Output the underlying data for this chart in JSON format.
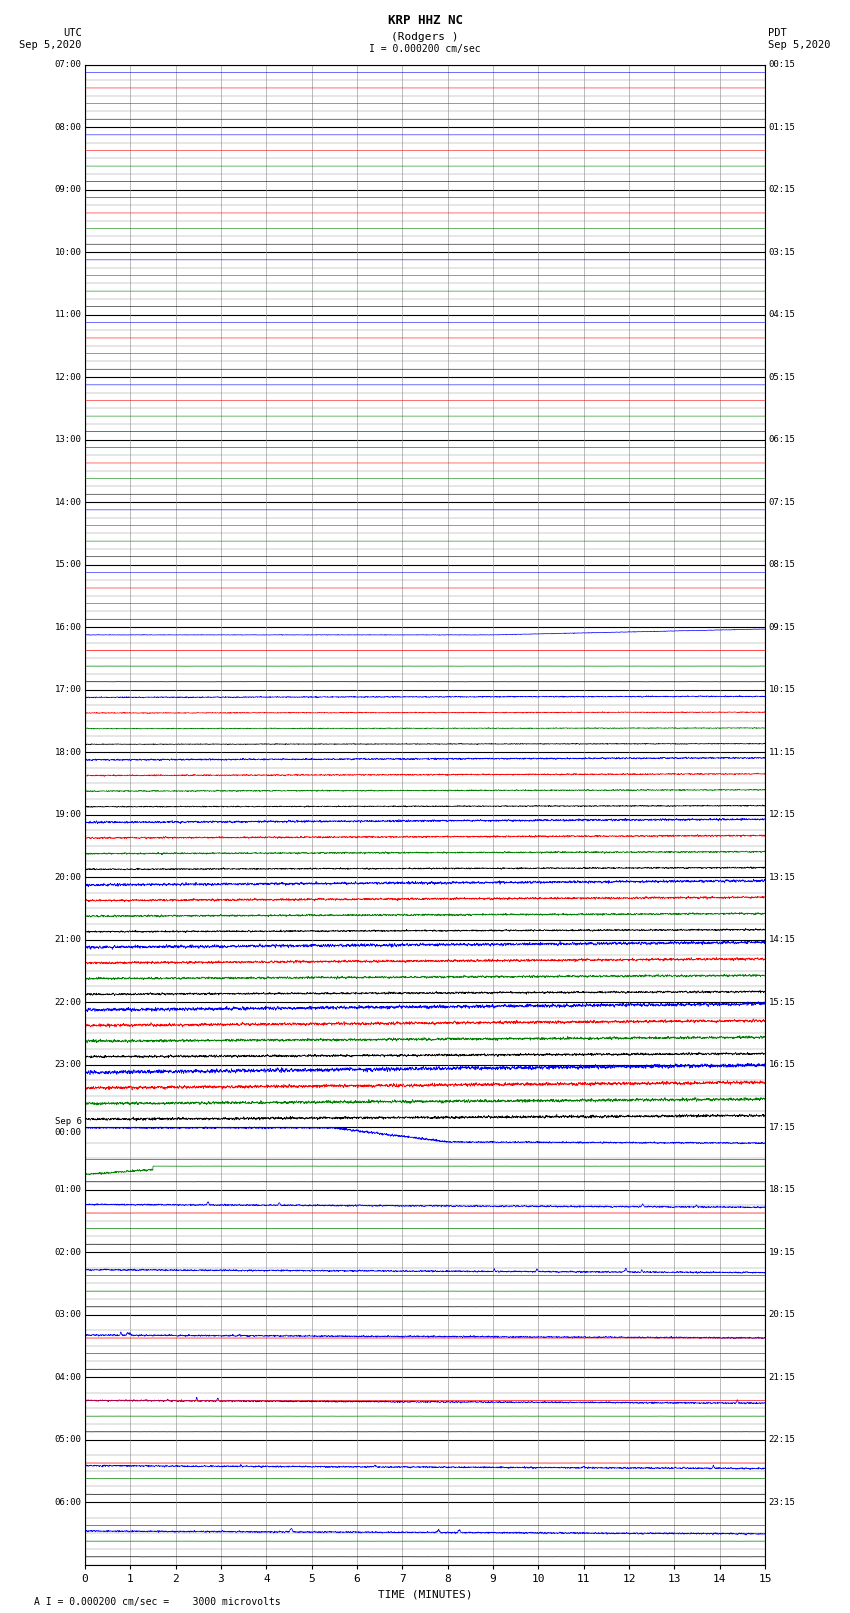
{
  "title_line1": "KRP HHZ NC",
  "title_line2": "(Rodgers )",
  "scale_text": "I = 0.000200 cm/sec",
  "bottom_text": "A I = 0.000200 cm/sec =    3000 microvolts",
  "left_header": "UTC\nSep 5,2020",
  "right_header": "PDT\nSep 5,2020",
  "xlabel": "TIME (MINUTES)",
  "xlim": [
    0,
    15
  ],
  "xticks": [
    0,
    1,
    2,
    3,
    4,
    5,
    6,
    7,
    8,
    9,
    10,
    11,
    12,
    13,
    14,
    15
  ],
  "background_color": "#ffffff",
  "major_grid_color": "#000000",
  "minor_grid_color": "#888888",
  "utc_times": [
    "07:00",
    "08:00",
    "09:00",
    "10:00",
    "11:00",
    "12:00",
    "13:00",
    "14:00",
    "15:00",
    "16:00",
    "17:00",
    "18:00",
    "19:00",
    "20:00",
    "21:00",
    "22:00",
    "23:00",
    "Sep 6\n00:00",
    "01:00",
    "02:00",
    "03:00",
    "04:00",
    "05:00",
    "06:00"
  ],
  "pdt_times": [
    "00:15",
    "01:15",
    "02:15",
    "03:15",
    "04:15",
    "05:15",
    "06:15",
    "07:15",
    "08:15",
    "09:15",
    "10:15",
    "11:15",
    "12:15",
    "13:15",
    "14:15",
    "15:15",
    "16:15",
    "17:15",
    "18:15",
    "19:15",
    "20:15",
    "21:15",
    "22:15",
    "23:15"
  ],
  "n_rows": 24,
  "n_sub_rows": 4,
  "colors": [
    "blue",
    "red",
    "green",
    "black"
  ],
  "fig_width": 8.5,
  "fig_height": 16.13
}
